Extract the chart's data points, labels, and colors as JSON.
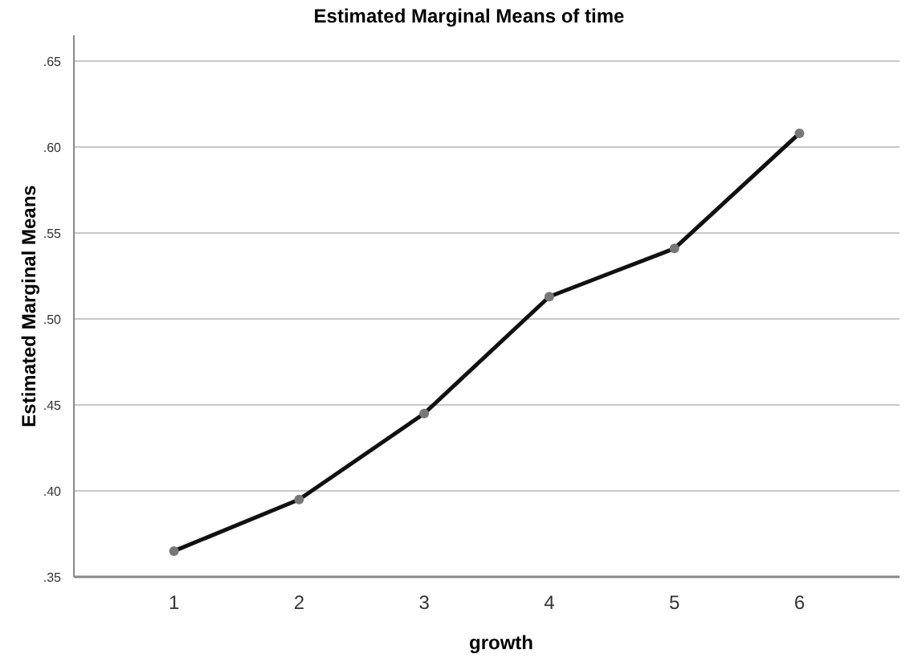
{
  "chart_data": {
    "type": "line",
    "title": "Estimated Marginal Means of time",
    "xlabel": "growth",
    "ylabel": "Estimated Marginal Means",
    "categories": [
      "1",
      "2",
      "3",
      "4",
      "5",
      "6"
    ],
    "series": [
      {
        "color": "#111111",
        "values": [
          0.365,
          0.395,
          0.445,
          0.513,
          0.541,
          0.608
        ]
      }
    ],
    "ylim": [
      0.35,
      0.665
    ],
    "yticks": [
      {
        "value": 0.35,
        "label": ".35"
      },
      {
        "value": 0.4,
        "label": ".40"
      },
      {
        "value": 0.45,
        "label": ".45"
      },
      {
        "value": 0.5,
        "label": ".50"
      },
      {
        "value": 0.55,
        "label": ".55"
      },
      {
        "value": 0.6,
        "label": ".60"
      },
      {
        "value": 0.65,
        "label": ".65"
      }
    ],
    "grid": "y",
    "marker": "circle",
    "line_style": "solid"
  }
}
